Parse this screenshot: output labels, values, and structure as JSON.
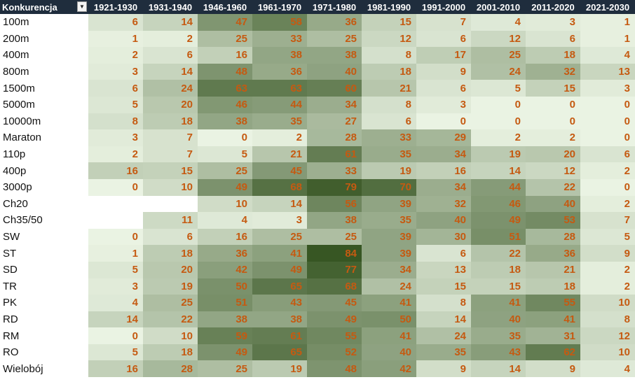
{
  "header": {
    "first_col": "Konkurencja",
    "filter_icon": "dropdown-arrow-icon",
    "columns": [
      "1921-1930",
      "1931-1940",
      "1946-1960",
      "1961-1970",
      "1971-1980",
      "1981-1990",
      "1991-2000",
      "2001-2010",
      "2011-2020",
      "2021-2030"
    ]
  },
  "colors": {
    "header_bg": "#1f2d3d",
    "value_text": "#c55a11",
    "scale_low": "#eaf3e3",
    "scale_high": "#375623"
  },
  "rows": [
    {
      "label": "100m",
      "values": [
        6,
        14,
        47,
        58,
        36,
        15,
        7,
        4,
        3,
        1
      ]
    },
    {
      "label": "200m",
      "values": [
        1,
        2,
        25,
        33,
        25,
        12,
        6,
        12,
        6,
        1
      ]
    },
    {
      "label": "400m",
      "values": [
        2,
        6,
        16,
        38,
        38,
        8,
        17,
        25,
        18,
        4
      ]
    },
    {
      "label": "800m",
      "values": [
        3,
        14,
        48,
        36,
        40,
        18,
        9,
        24,
        32,
        13
      ]
    },
    {
      "label": "1500m",
      "values": [
        6,
        24,
        63,
        63,
        60,
        21,
        6,
        5,
        15,
        3
      ]
    },
    {
      "label": "5000m",
      "values": [
        5,
        20,
        46,
        44,
        34,
        8,
        3,
        0,
        0,
        0
      ]
    },
    {
      "label": "10000m",
      "values": [
        8,
        18,
        38,
        35,
        27,
        6,
        0,
        0,
        0,
        0
      ]
    },
    {
      "label": "Maraton",
      "values": [
        3,
        7,
        0,
        2,
        28,
        33,
        29,
        2,
        2,
        0
      ]
    },
    {
      "label": "110p",
      "values": [
        2,
        7,
        5,
        21,
        61,
        35,
        34,
        19,
        20,
        6
      ]
    },
    {
      "label": "400p",
      "values": [
        16,
        15,
        25,
        45,
        33,
        19,
        16,
        14,
        12,
        2
      ]
    },
    {
      "label": "3000p",
      "values": [
        0,
        10,
        49,
        68,
        79,
        70,
        34,
        44,
        22,
        0
      ]
    },
    {
      "label": "Ch20",
      "values": [
        null,
        null,
        10,
        14,
        56,
        39,
        32,
        46,
        40,
        2
      ]
    },
    {
      "label": "Ch35/50",
      "values": [
        null,
        11,
        4,
        3,
        38,
        35,
        40,
        49,
        53,
        7
      ]
    },
    {
      "label": "SW",
      "values": [
        0,
        6,
        16,
        25,
        25,
        39,
        30,
        51,
        28,
        5
      ]
    },
    {
      "label": "ST",
      "values": [
        1,
        18,
        36,
        41,
        84,
        39,
        6,
        22,
        36,
        9
      ]
    },
    {
      "label": "SD",
      "values": [
        5,
        20,
        42,
        49,
        77,
        34,
        13,
        18,
        21,
        2
      ]
    },
    {
      "label": "TR",
      "values": [
        3,
        19,
        50,
        65,
        68,
        24,
        15,
        15,
        18,
        2
      ]
    },
    {
      "label": "PK",
      "values": [
        4,
        25,
        51,
        43,
        45,
        41,
        8,
        41,
        55,
        10
      ]
    },
    {
      "label": "RD",
      "values": [
        14,
        22,
        38,
        38,
        49,
        50,
        14,
        40,
        41,
        8
      ]
    },
    {
      "label": "RM",
      "values": [
        0,
        10,
        59,
        61,
        55,
        41,
        24,
        35,
        31,
        12
      ]
    },
    {
      "label": "RO",
      "values": [
        5,
        18,
        49,
        65,
        52,
        40,
        35,
        43,
        62,
        10
      ]
    },
    {
      "label": "Wielobój",
      "values": [
        16,
        28,
        25,
        19,
        48,
        42,
        9,
        14,
        9,
        4
      ]
    }
  ]
}
